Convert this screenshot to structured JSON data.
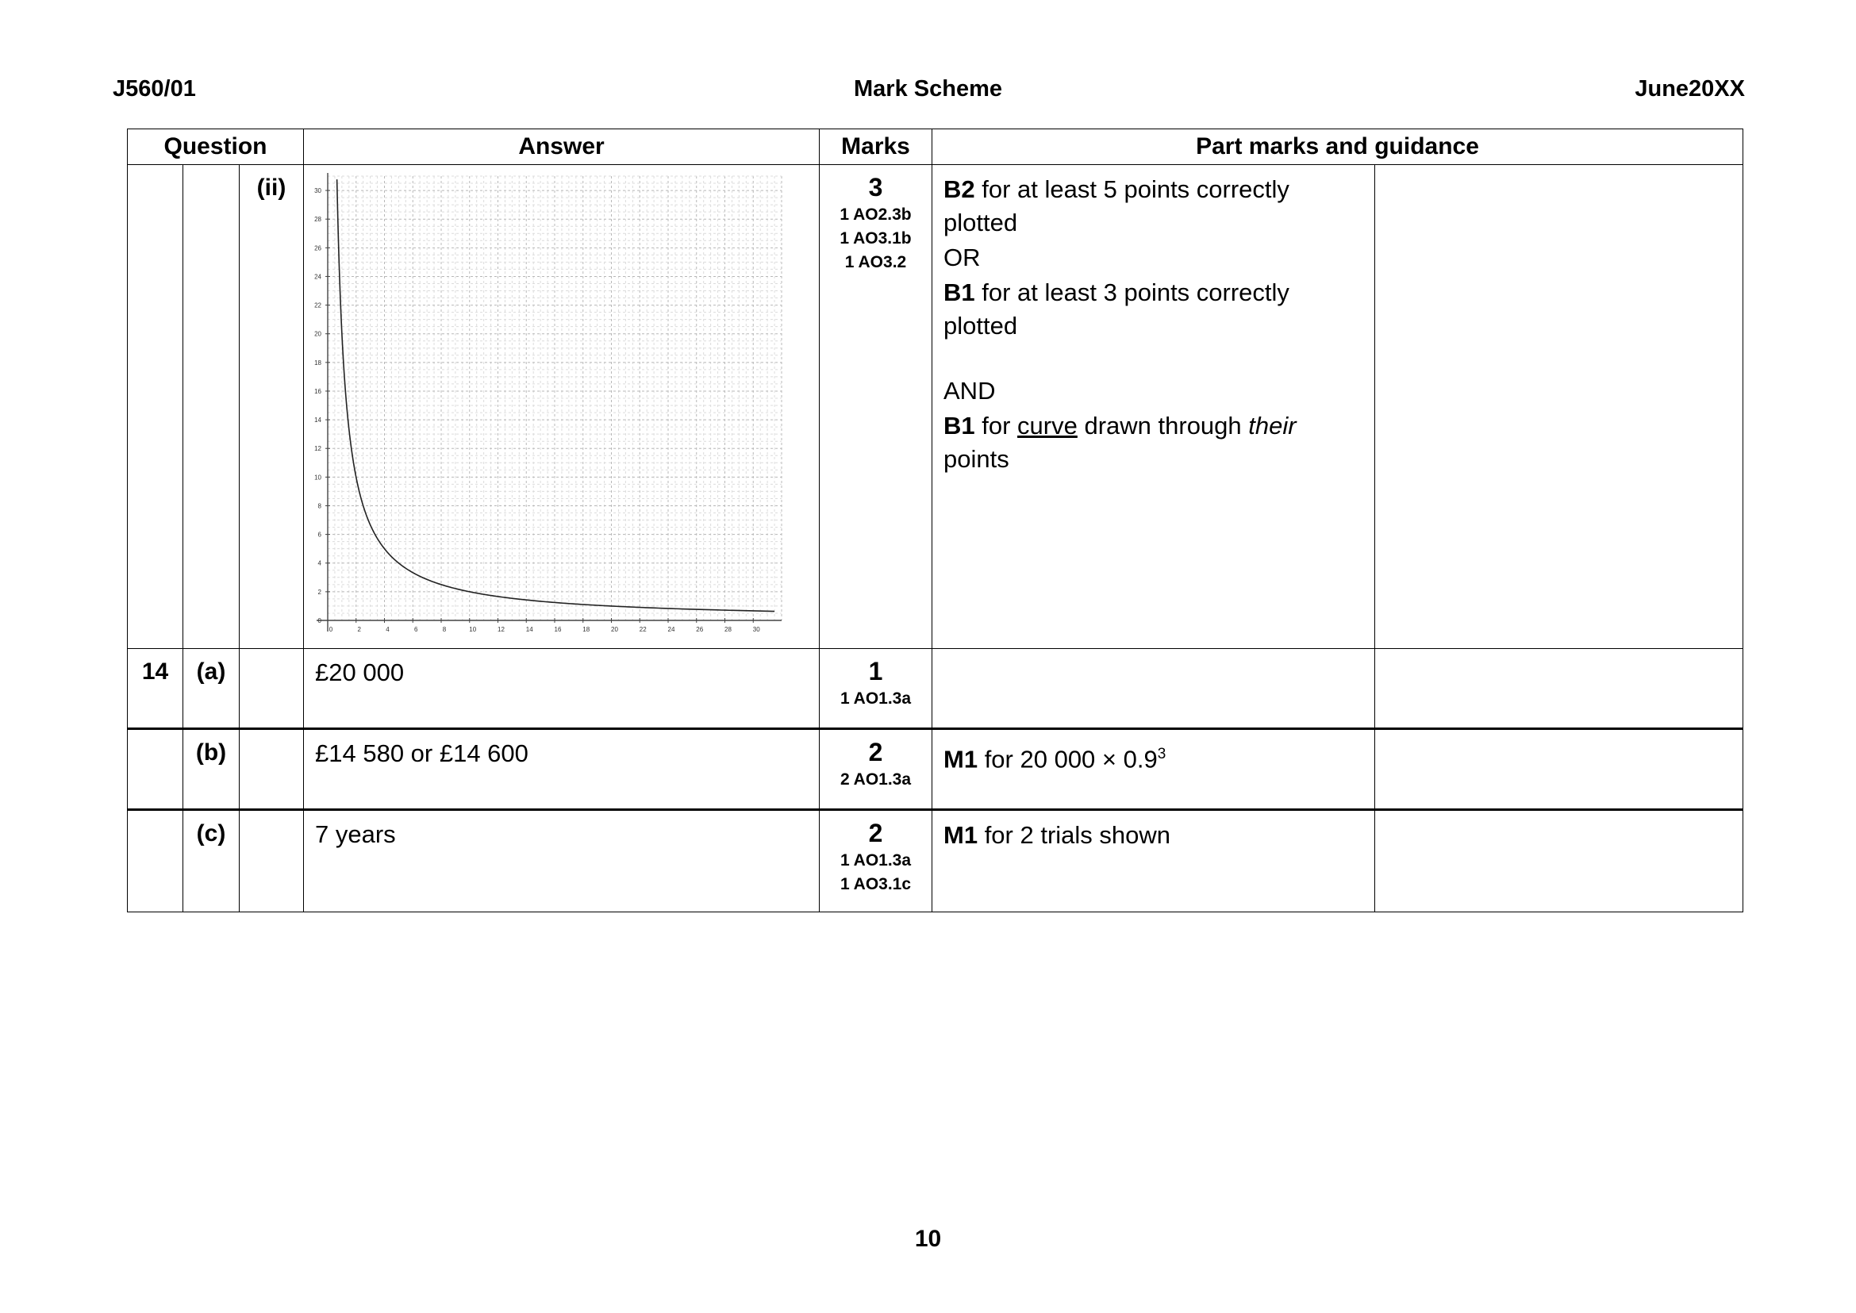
{
  "header": {
    "code": "J560/01",
    "title": "Mark Scheme",
    "session": "June20XX"
  },
  "table_headers": {
    "question": "Question",
    "answer": "Answer",
    "marks": "Marks",
    "guidance": "Part marks and guidance"
  },
  "rows": {
    "ii": {
      "sub": "(ii)",
      "marks": "3",
      "ao": [
        "1 AO2.3b",
        "1 AO3.1b",
        "1 AO3.2"
      ],
      "g1_bold": "B2",
      "g1_text": " for at least 5 points correctly plotted",
      "g_or": "OR",
      "g2_bold": "B1",
      "g2_text": " for at least 3 points correctly plotted",
      "g_and": "AND",
      "g3_bold": "B1",
      "g3_pre": " for ",
      "g3_u": "curve",
      "g3_mid": " drawn through ",
      "g3_i": "their",
      "g3_post": " points"
    },
    "a": {
      "q": "14",
      "part": "(a)",
      "answer": "£20 000",
      "marks": "1",
      "ao": [
        "1 AO1.3a"
      ]
    },
    "b": {
      "part": "(b)",
      "answer": "£14 580 or £14 600",
      "marks": "2",
      "ao": [
        "2 AO1.3a"
      ],
      "g_bold": "M1",
      "g_text": " for 20 000 × 0.9",
      "g_sup": "3"
    },
    "c": {
      "part": "(c)",
      "answer": "7 years",
      "marks": "2",
      "ao": [
        "1 AO1.3a",
        "1 AO3.1c"
      ],
      "g_bold": "M1",
      "g_text": " for 2 trials shown"
    }
  },
  "page_number": "10",
  "chart_data": {
    "type": "line",
    "x_ticks": [
      "0",
      "2",
      "4",
      "6",
      "8",
      "10",
      "12",
      "14",
      "16",
      "18",
      "20",
      "22",
      "24",
      "26",
      "28",
      "30"
    ],
    "y_ticks": [
      "0",
      "2",
      "4",
      "6",
      "8",
      "10",
      "12",
      "14",
      "16",
      "18",
      "20",
      "22",
      "24",
      "26",
      "28",
      "30"
    ],
    "xlim": [
      0,
      32
    ],
    "ylim": [
      0,
      31
    ],
    "grid": true,
    "series": [
      {
        "function": "y = 20/x",
        "x_start": 0.65,
        "x_end": 31.5
      }
    ]
  }
}
